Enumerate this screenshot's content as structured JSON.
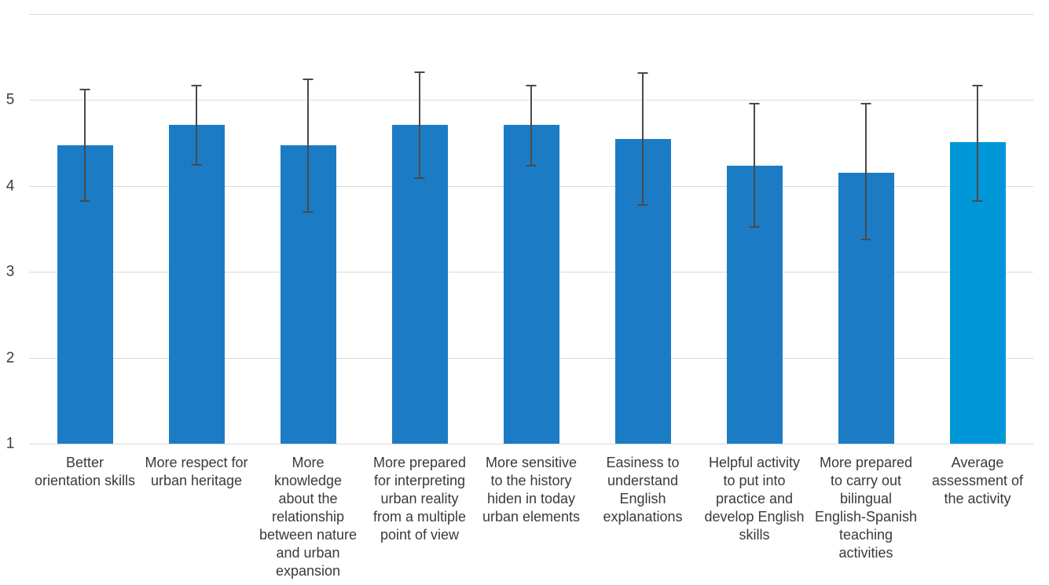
{
  "chart_data": {
    "type": "bar",
    "title": "",
    "xlabel": "",
    "ylabel": "",
    "ylim": [
      1,
      6
    ],
    "yticks": [
      1,
      2,
      3,
      4,
      5
    ],
    "grid": true,
    "legend_position": "none",
    "categories": [
      "Better orientation skills",
      "More respect for urban heritage",
      "More knowledge about the relationship between nature and urban expansion",
      "More prepared for interpreting urban reality from a multiple point of view",
      "More sensitive to the history hiden in today urban elements",
      "Easiness to understand English explanations",
      "Helpful activity to put into practice and develop English skills",
      "More prepared to carry out bilingual English-Spanish teaching activities",
      "Average assessment of the activity"
    ],
    "categories_wrap": [
      [
        "Better",
        "orientation skills"
      ],
      [
        "More respect for",
        "urban heritage"
      ],
      [
        "More",
        "knowledge",
        "about the",
        "relationship",
        "between nature",
        "and urban",
        "expansion"
      ],
      [
        "More prepared",
        "for interpreting",
        "urban reality",
        "from a multiple",
        "point of view"
      ],
      [
        "More sensitive",
        "to the history",
        "hiden in today",
        "urban elements"
      ],
      [
        "Easiness to",
        "understand",
        "English",
        "explanations"
      ],
      [
        "Helpful activity",
        "to put into",
        "practice and",
        "develop English",
        "skills"
      ],
      [
        "More prepared",
        "to carry out",
        "bilingual",
        "English-Spanish",
        "teaching",
        "activities"
      ],
      [
        "Average",
        "assessment of",
        "the activity"
      ]
    ],
    "values": [
      4.47,
      4.71,
      4.47,
      4.71,
      4.71,
      4.55,
      4.24,
      4.15,
      4.51
    ],
    "error_upper": [
      5.13,
      5.18,
      5.25,
      5.33,
      5.18,
      5.32,
      4.97,
      4.97,
      5.18
    ],
    "error_lower": [
      3.81,
      4.24,
      3.69,
      4.08,
      4.23,
      3.77,
      3.52,
      3.37,
      3.82
    ],
    "highlight_index": 8,
    "colors": {
      "bar": "#1b7cc5",
      "highlight_bar": "#0097d8",
      "error_bar": "#4a4a4a",
      "gridline": "#d9d9d9",
      "tick_label": "#3d3d3d",
      "category_label": "#3a3a3a"
    }
  }
}
